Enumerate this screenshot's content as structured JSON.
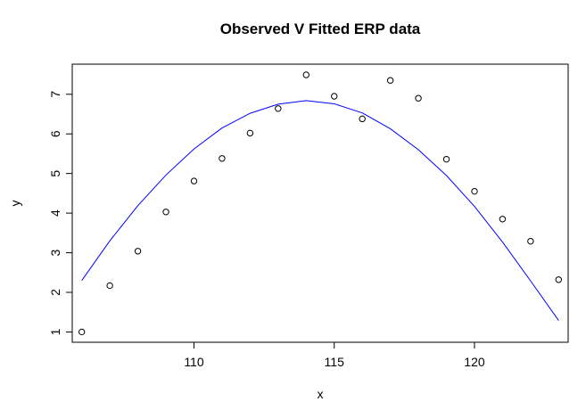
{
  "chart_data": {
    "type": "scatter",
    "title": "Observed V Fitted ERP data",
    "xlabel": "x",
    "ylabel": "y",
    "xlim": [
      105.66,
      123.34
    ],
    "ylim": [
      0.74,
      7.76
    ],
    "x_ticks": [
      110,
      115,
      120
    ],
    "y_ticks": [
      1,
      2,
      3,
      4,
      5,
      6,
      7
    ],
    "grid": false,
    "legend": "none",
    "series": [
      {
        "kind": "points",
        "marker": "open-circle",
        "color": "#000000",
        "x": [
          106,
          107,
          108,
          109,
          110,
          111,
          112,
          113,
          114,
          115,
          116,
          117,
          118,
          119,
          120,
          121,
          122,
          123
        ],
        "y": [
          1.0,
          2.17,
          3.04,
          4.03,
          4.81,
          5.38,
          6.02,
          6.64,
          7.49,
          6.95,
          6.38,
          7.35,
          6.9,
          5.36,
          4.55,
          3.85,
          3.29,
          2.32
        ]
      },
      {
        "kind": "line",
        "color": "#0000ff",
        "x": [
          106,
          107,
          108,
          109,
          110,
          111,
          112,
          113,
          114,
          115,
          116,
          117,
          118,
          119,
          120,
          121,
          122,
          123
        ],
        "y": [
          2.3,
          3.3,
          4.19,
          4.96,
          5.62,
          6.15,
          6.52,
          6.75,
          6.84,
          6.76,
          6.53,
          6.13,
          5.6,
          4.95,
          4.17,
          3.27,
          2.29,
          1.29
        ]
      }
    ]
  }
}
